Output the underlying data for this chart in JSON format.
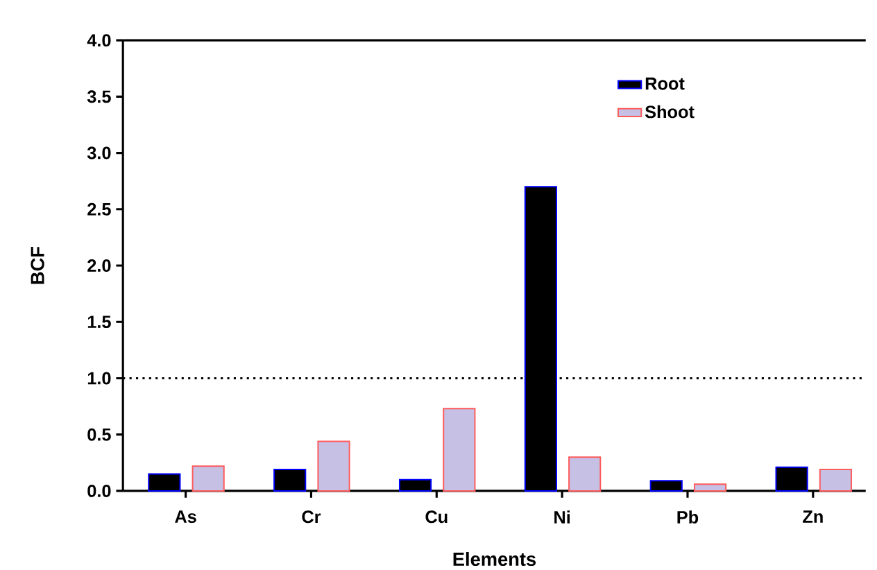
{
  "chart_data": {
    "type": "bar",
    "xlabel": "Elements",
    "ylabel": "BCF",
    "categories": [
      "As",
      "Cr",
      "Cu",
      "Ni",
      "Pb",
      "Zn"
    ],
    "series": [
      {
        "name": "Root",
        "color": "#000000",
        "values": [
          0.15,
          0.19,
          0.1,
          2.7,
          0.09,
          0.21
        ]
      },
      {
        "name": "Shoot",
        "color": "#c5c0e4",
        "values": [
          0.22,
          0.44,
          0.73,
          0.3,
          0.06,
          0.19
        ]
      }
    ],
    "ylim": [
      0,
      4
    ],
    "yticks": [
      {
        "value": 0,
        "label": "0.0"
      },
      {
        "value": 0.5,
        "label": "0.5"
      },
      {
        "value": 1,
        "label": "1.0"
      },
      {
        "value": 1.5,
        "label": "1.5"
      },
      {
        "value": 2,
        "label": "2.0"
      },
      {
        "value": 2.5,
        "label": "2.5"
      },
      {
        "value": 3,
        "label": "3.0"
      },
      {
        "value": 3.5,
        "label": "3.5"
      },
      {
        "value": 4,
        "label": "4.0"
      }
    ],
    "ref_lines": [
      {
        "axis": "y",
        "value": 1,
        "line_style": "dotted",
        "color": "#000000"
      }
    ],
    "legend": "top right"
  }
}
